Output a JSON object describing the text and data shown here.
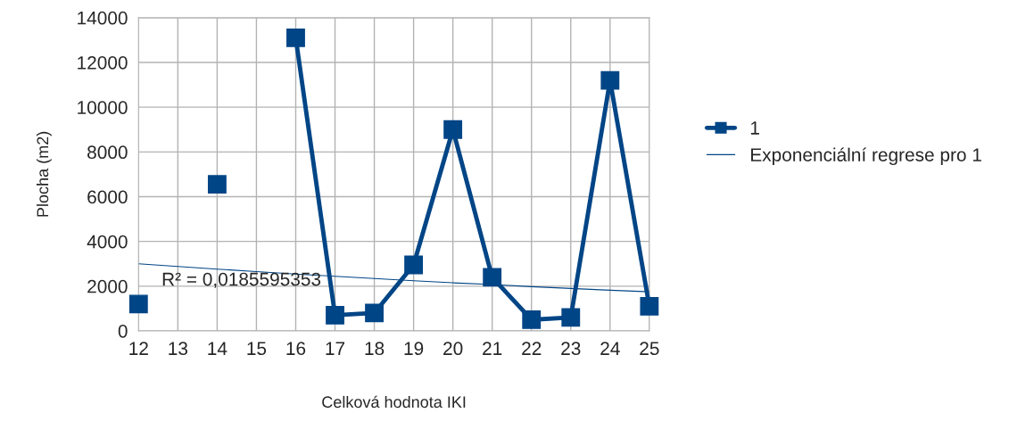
{
  "chart_data": {
    "type": "line",
    "xlabel": "Celková hodnota IKI",
    "ylabel": "Plocha (m2)",
    "categories": [
      "12",
      "13",
      "14",
      "15",
      "16",
      "17",
      "18",
      "19",
      "20",
      "21",
      "22",
      "23",
      "24",
      "25"
    ],
    "series": [
      {
        "name": "1",
        "color": "#004586",
        "marker": "square",
        "line_style": "solid",
        "values": [
          1200,
          null,
          6550,
          null,
          13100,
          700,
          800,
          2950,
          9000,
          2400,
          500,
          600,
          11200,
          1100
        ]
      },
      {
        "name": "Exponenciální regrese pro 1",
        "color": "#004586",
        "marker": "none",
        "line_style": "solid",
        "values": [
          3000,
          2880,
          2760,
          2650,
          2540,
          2440,
          2340,
          2240,
          2150,
          2070,
          1980,
          1900,
          1820,
          1750
        ]
      }
    ],
    "ylim": [
      0,
      14000
    ],
    "yticks": [
      0,
      2000,
      4000,
      6000,
      8000,
      10000,
      12000,
      14000
    ],
    "grid": true,
    "legend": "right",
    "annotations": [
      "R² = 0,0185595353"
    ]
  }
}
